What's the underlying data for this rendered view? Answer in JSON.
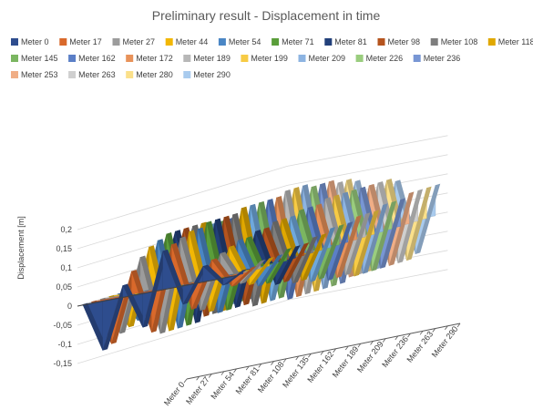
{
  "chart_data": {
    "type": "area",
    "title": "Preliminary result - Displacement in time",
    "ylabel": "Displacement [m]",
    "xlabel": "",
    "ylim": [
      -0.15,
      0.2
    ],
    "yticks": [
      "0,2",
      "0,15",
      "0,1",
      "0,05",
      "0",
      "-0,05",
      "-0,1",
      "-0,15"
    ],
    "depth_tick_labels": [
      "Meter 0",
      "Meter 27",
      "Meter 54",
      "Meter 81",
      "Meter 108",
      "Meter 135",
      "Meter 162",
      "Meter 189",
      "Meter 209",
      "Meter 236",
      "Meter 263",
      "Meter 290"
    ],
    "legend_placement": "top",
    "grid": true,
    "time_steps": 9,
    "series": [
      {
        "name": "Meter 0",
        "color": "#2E4D8E",
        "values": [
          0.0,
          -0.13,
          0.03,
          -0.09,
          0.1,
          -0.05,
          0.04,
          -0.02,
          0.01
        ]
      },
      {
        "name": "Meter 17",
        "color": "#D9692B",
        "values": [
          0.0,
          -0.12,
          0.06,
          -0.11,
          0.11,
          -0.07,
          0.05,
          -0.03,
          0.01
        ]
      },
      {
        "name": "Meter 27",
        "color": "#9C9C9C",
        "values": [
          0.0,
          -0.1,
          0.09,
          -0.12,
          0.12,
          -0.08,
          0.06,
          -0.03,
          0.02
        ]
      },
      {
        "name": "Meter 44",
        "color": "#F2B705",
        "values": [
          0.0,
          -0.09,
          0.11,
          -0.12,
          0.13,
          -0.09,
          0.07,
          -0.04,
          0.02
        ]
      },
      {
        "name": "Meter 54",
        "color": "#4A86C5",
        "values": [
          0.0,
          -0.08,
          0.12,
          -0.12,
          0.13,
          -0.1,
          0.08,
          -0.05,
          0.02
        ]
      },
      {
        "name": "Meter 71",
        "color": "#5A9E3A",
        "values": [
          0.0,
          -0.07,
          0.13,
          -0.12,
          0.14,
          -0.1,
          0.08,
          -0.05,
          0.03
        ]
      },
      {
        "name": "Meter 81",
        "color": "#22407A",
        "values": [
          0.0,
          -0.06,
          0.13,
          -0.12,
          0.14,
          -0.1,
          0.09,
          -0.06,
          0.03
        ]
      },
      {
        "name": "Meter 98",
        "color": "#B5541E",
        "values": [
          0.0,
          -0.05,
          0.13,
          -0.11,
          0.14,
          -0.1,
          0.09,
          -0.06,
          0.03
        ]
      },
      {
        "name": "Meter 108",
        "color": "#7E7E7E",
        "values": [
          0.0,
          -0.05,
          0.13,
          -0.11,
          0.14,
          -0.11,
          0.1,
          -0.07,
          0.04
        ]
      },
      {
        "name": "Meter 118",
        "color": "#E0A800",
        "values": [
          0.0,
          -0.04,
          0.13,
          -0.11,
          0.15,
          -0.11,
          0.1,
          -0.07,
          0.04
        ]
      },
      {
        "name": "Meter 135",
        "color": "#6FA8DC",
        "values": [
          0.0,
          -0.04,
          0.12,
          -0.1,
          0.15,
          -0.11,
          0.1,
          -0.08,
          0.05
        ]
      },
      {
        "name": "Meter 145",
        "color": "#7BB661",
        "values": [
          0.0,
          -0.03,
          0.12,
          -0.1,
          0.15,
          -0.11,
          0.11,
          -0.08,
          0.05
        ]
      },
      {
        "name": "Meter 162",
        "color": "#5B7FC7",
        "values": [
          0.0,
          -0.03,
          0.12,
          -0.1,
          0.15,
          -0.12,
          0.11,
          -0.09,
          0.05
        ]
      },
      {
        "name": "Meter 172",
        "color": "#E8925A",
        "values": [
          0.0,
          -0.03,
          0.11,
          -0.09,
          0.15,
          -0.12,
          0.11,
          -0.09,
          0.06
        ]
      },
      {
        "name": "Meter 189",
        "color": "#B7B7B7",
        "values": [
          0.0,
          -0.02,
          0.11,
          -0.09,
          0.16,
          -0.12,
          0.12,
          -0.09,
          0.06
        ]
      },
      {
        "name": "Meter 199",
        "color": "#F7CB45",
        "values": [
          0.0,
          -0.02,
          0.1,
          -0.09,
          0.16,
          -0.12,
          0.12,
          -0.1,
          0.06
        ]
      },
      {
        "name": "Meter 209",
        "color": "#8DB4E2",
        "values": [
          0.0,
          -0.02,
          0.1,
          -0.08,
          0.16,
          -0.12,
          0.12,
          -0.1,
          0.07
        ]
      },
      {
        "name": "Meter 226",
        "color": "#9ACD7E",
        "values": [
          0.0,
          -0.02,
          0.09,
          -0.08,
          0.15,
          -0.12,
          0.12,
          -0.1,
          0.07
        ]
      },
      {
        "name": "Meter 236",
        "color": "#7896D4",
        "values": [
          0.0,
          -0.01,
          0.09,
          -0.08,
          0.15,
          -0.12,
          0.12,
          -0.1,
          0.07
        ]
      },
      {
        "name": "Meter 253",
        "color": "#F0AE86",
        "values": [
          0.0,
          -0.01,
          0.08,
          -0.07,
          0.15,
          -0.11,
          0.12,
          -0.1,
          0.08
        ]
      },
      {
        "name": "Meter 263",
        "color": "#CFCFCF",
        "values": [
          0.0,
          -0.01,
          0.08,
          -0.07,
          0.14,
          -0.11,
          0.12,
          -0.1,
          0.08
        ]
      },
      {
        "name": "Meter 280",
        "color": "#FBE08A",
        "values": [
          0.0,
          -0.01,
          0.07,
          -0.07,
          0.14,
          -0.11,
          0.12,
          -0.1,
          0.08
        ]
      },
      {
        "name": "Meter 290",
        "color": "#A9CBEE",
        "values": [
          0.0,
          -0.01,
          0.07,
          -0.06,
          0.13,
          -0.11,
          0.11,
          -0.09,
          0.08
        ]
      }
    ]
  }
}
